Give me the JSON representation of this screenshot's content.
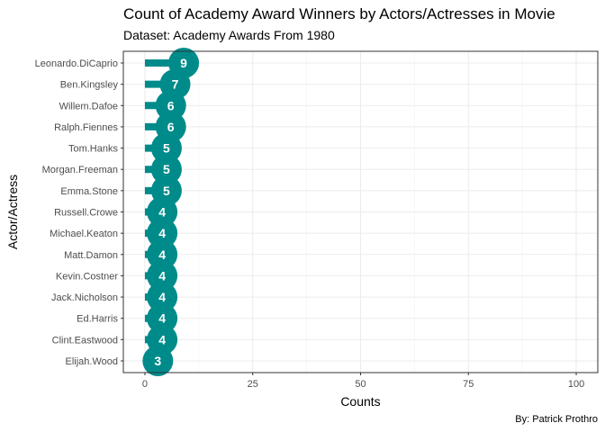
{
  "chart_data": {
    "type": "bar",
    "title": "Count of Academy Award Winners by Actors/Actresses in Movie",
    "subtitle": "Dataset: Academy Awards From 1980",
    "caption": "By: Patrick Prothro",
    "xlabel": "Counts",
    "ylabel": "Actor/Actress",
    "orientation": "horizontal",
    "style": "lollipop",
    "categories": [
      "Leonardo.DiCaprio",
      "Ben.Kingsley",
      "Willem.Dafoe",
      "Ralph.Fiennes",
      "Tom.Hanks",
      "Morgan.Freeman",
      "Emma.Stone",
      "Russell.Crowe",
      "Michael.Keaton",
      "Matt.Damon",
      "Kevin.Costner",
      "Jack.Nicholson",
      "Ed.Harris",
      "Clint.Eastwood",
      "Elijah.Wood"
    ],
    "values": [
      9,
      7,
      6,
      6,
      5,
      5,
      5,
      4,
      4,
      4,
      4,
      4,
      4,
      4,
      3
    ],
    "xlim": [
      -5,
      105
    ],
    "xticks": [
      0,
      25,
      50,
      75,
      100
    ],
    "grid": true,
    "color": "#008b8b"
  }
}
